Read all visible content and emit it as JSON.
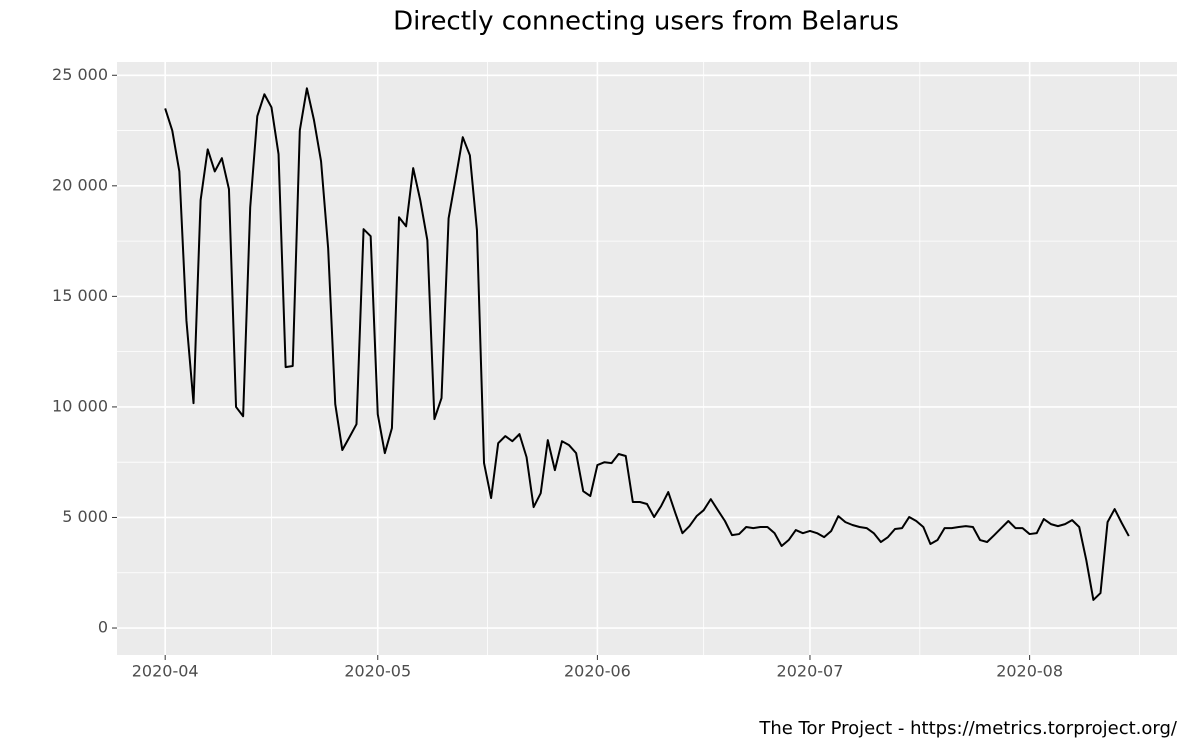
{
  "chart_data": {
    "type": "line",
    "title": "Directly connecting users from Belarus",
    "caption": "The Tor Project - https://metrics.torproject.org/",
    "color": "#000000",
    "values": [
      23500,
      22500,
      20650,
      13900,
      10170,
      19350,
      21650,
      20650,
      21250,
      19850,
      10000,
      9580,
      19030,
      23150,
      24140,
      23550,
      21430,
      11800,
      11850,
      22510,
      24410,
      22970,
      21110,
      17180,
      10130,
      8050,
      8630,
      9220,
      18040,
      17720,
      9670,
      7910,
      9040,
      18580,
      18170,
      20800,
      19350,
      17540,
      9450,
      10400,
      18530,
      20340,
      22200,
      21380,
      17990,
      7460,
      5880,
      8360,
      8680,
      8450,
      8770,
      7730,
      5470,
      6100,
      8500,
      7140,
      8450,
      8270,
      7910,
      6190,
      5970,
      7370,
      7500,
      7460,
      7870,
      7780,
      5700,
      5700,
      5610,
      5020,
      5520,
      6150,
      5200,
      4290,
      4610,
      5060,
      5330,
      5830,
      5330,
      4840,
      4200,
      4250,
      4570,
      4520,
      4570,
      4570,
      4290,
      3710,
      3980,
      4430,
      4290,
      4390,
      4290,
      4110,
      4390,
      5060,
      4790,
      4660,
      4570,
      4520,
      4290,
      3890,
      4110,
      4480,
      4520,
      5020,
      4840,
      4570,
      3800,
      3980,
      4520,
      4520,
      4570,
      4610,
      4570,
      3980,
      3890,
      4200,
      4520,
      4840,
      4520,
      4520,
      4250,
      4290,
      4930,
      4700,
      4610,
      4700,
      4880,
      4570,
      3070,
      1270,
      1580,
      4790,
      5380,
      4750,
      4160
    ],
    "xticks": [
      "2020-04",
      "2020-05",
      "2020-06",
      "2020-07",
      "2020-08"
    ],
    "ylim": [
      -1220,
      25600
    ],
    "yticks": [
      0,
      {
        "value": 5000,
        "label": "5 000"
      },
      {
        "value": 10000,
        "label": "10 000"
      },
      {
        "value": 15000,
        "label": "15 000"
      },
      {
        "value": 20000,
        "label": "20 000"
      },
      {
        "value": 25000,
        "label": "25 000"
      }
    ],
    "grid": true
  }
}
